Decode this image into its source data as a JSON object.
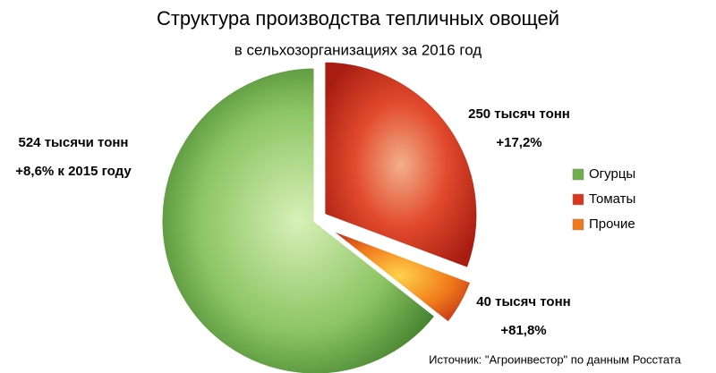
{
  "chart_data": {
    "type": "pie",
    "title": "Структура производства тепличных овощей",
    "subtitle": "в сельхозорганизациях за 2016 год",
    "categories": [
      "Огурцы",
      "Томаты",
      "Прочие"
    ],
    "values": [
      524,
      250,
      40
    ],
    "value_labels": [
      "524 тысячи тонн",
      "250 тысяч тонн",
      "40 тысяч тонн"
    ],
    "annotations": [
      "+8,6% к 2015 году",
      "+17,2%",
      "+81,8%"
    ],
    "colors": [
      "#6fae4a",
      "#d9361f",
      "#f07a1a"
    ],
    "source": "Источник: \"Агроинвестор\" по данным Росстата"
  }
}
